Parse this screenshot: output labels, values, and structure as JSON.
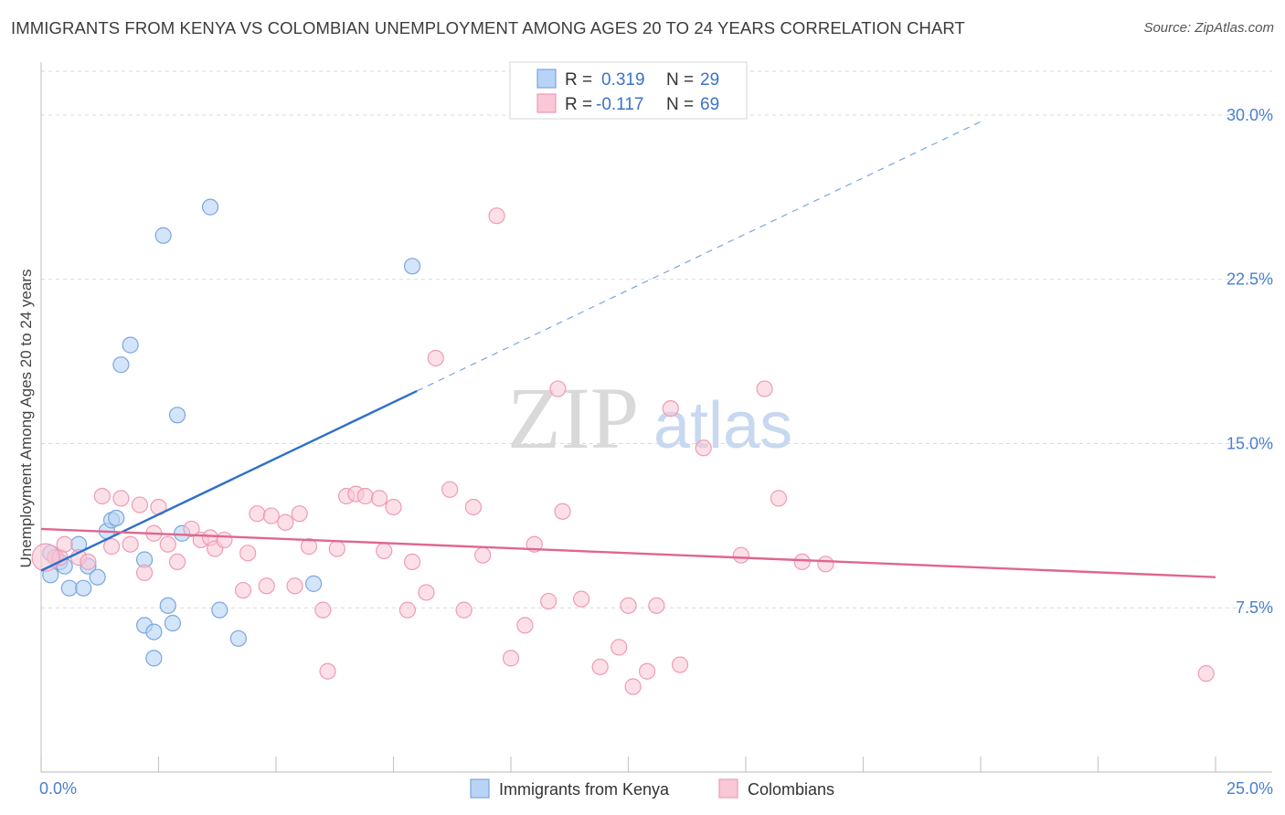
{
  "title": "IMMIGRANTS FROM KENYA VS COLOMBIAN UNEMPLOYMENT AMONG AGES 20 TO 24 YEARS CORRELATION CHART",
  "source": "Source: ZipAtlas.com",
  "watermark": {
    "zip": "ZIP",
    "atlas": "atlas"
  },
  "legend_top": {
    "r_label": "R =",
    "n_label": "N =",
    "rows": [
      {
        "r": "0.319",
        "n": "29"
      },
      {
        "r": "-0.117",
        "n": "69"
      }
    ]
  },
  "colors": {
    "kenya_fill": "#b8d3f5",
    "kenya_stroke": "#7aa6e0",
    "kenya_line": "#2f6fca",
    "colombia_fill": "#f9c7d6",
    "colombia_stroke": "#ef9bb5",
    "colombia_line": "#e0668f",
    "value_text": "#3a73c8",
    "grid": "#d9d9d9"
  },
  "chart_data": {
    "type": "scatter",
    "xlabel": "",
    "ylabel": "Unemployment Among Ages 20 to 24 years",
    "xlim": [
      0,
      25
    ],
    "ylim": [
      0,
      32
    ],
    "x_tick_labels": [
      "0.0%",
      "25.0%"
    ],
    "y_ticks": [
      7.5,
      15.0,
      22.5,
      30.0
    ],
    "y_tick_labels": [
      "7.5%",
      "15.0%",
      "22.5%",
      "30.0%"
    ],
    "grid": "horizontal dashed",
    "legend_placement": "bottom-center",
    "series": [
      {
        "name": "Immigrants from Kenya",
        "r": 0.319,
        "n": 29,
        "points": [
          [
            0.2,
            10.0
          ],
          [
            0.2,
            9.0
          ],
          [
            0.3,
            9.8
          ],
          [
            0.4,
            9.6
          ],
          [
            0.5,
            9.4
          ],
          [
            0.6,
            8.4
          ],
          [
            0.8,
            10.4
          ],
          [
            0.9,
            8.4
          ],
          [
            1.0,
            9.4
          ],
          [
            1.2,
            8.9
          ],
          [
            1.4,
            11.0
          ],
          [
            1.5,
            11.5
          ],
          [
            1.6,
            11.6
          ],
          [
            1.7,
            18.6
          ],
          [
            1.9,
            19.5
          ],
          [
            2.2,
            6.7
          ],
          [
            2.2,
            9.7
          ],
          [
            2.4,
            5.2
          ],
          [
            2.4,
            6.4
          ],
          [
            2.6,
            24.5
          ],
          [
            2.7,
            7.6
          ],
          [
            2.8,
            6.8
          ],
          [
            2.9,
            16.3
          ],
          [
            3.0,
            10.9
          ],
          [
            3.6,
            25.8
          ],
          [
            3.8,
            7.4
          ],
          [
            4.2,
            6.1
          ],
          [
            5.8,
            8.6
          ],
          [
            7.9,
            23.1
          ]
        ],
        "trend": {
          "x0": 0.0,
          "y0": 9.2,
          "x1": 8.0,
          "y1": 17.4,
          "x_ext": 20.1,
          "y_ext": 29.8
        }
      },
      {
        "name": "Colombians",
        "r": -0.117,
        "n": 69,
        "points": [
          [
            0.3,
            9.8
          ],
          [
            0.4,
            9.8
          ],
          [
            0.5,
            10.4
          ],
          [
            0.8,
            9.8
          ],
          [
            1.0,
            9.6
          ],
          [
            1.3,
            12.6
          ],
          [
            1.5,
            10.3
          ],
          [
            1.7,
            12.5
          ],
          [
            1.9,
            10.4
          ],
          [
            2.1,
            12.2
          ],
          [
            2.2,
            9.1
          ],
          [
            2.4,
            10.9
          ],
          [
            2.5,
            12.1
          ],
          [
            2.7,
            10.4
          ],
          [
            2.9,
            9.6
          ],
          [
            3.2,
            11.1
          ],
          [
            3.4,
            10.6
          ],
          [
            3.6,
            10.7
          ],
          [
            3.7,
            10.2
          ],
          [
            3.9,
            10.6
          ],
          [
            4.3,
            8.3
          ],
          [
            4.4,
            10.0
          ],
          [
            4.6,
            11.8
          ],
          [
            4.8,
            8.5
          ],
          [
            4.9,
            11.7
          ],
          [
            5.2,
            11.4
          ],
          [
            5.4,
            8.5
          ],
          [
            5.5,
            11.8
          ],
          [
            5.7,
            10.3
          ],
          [
            6.0,
            7.4
          ],
          [
            6.1,
            4.6
          ],
          [
            6.3,
            10.2
          ],
          [
            6.5,
            12.6
          ],
          [
            6.7,
            12.7
          ],
          [
            6.9,
            12.6
          ],
          [
            7.2,
            12.5
          ],
          [
            7.3,
            10.1
          ],
          [
            7.5,
            12.1
          ],
          [
            7.8,
            7.4
          ],
          [
            7.9,
            9.6
          ],
          [
            8.2,
            8.2
          ],
          [
            8.4,
            18.9
          ],
          [
            8.7,
            12.9
          ],
          [
            9.0,
            7.4
          ],
          [
            9.2,
            12.1
          ],
          [
            9.4,
            9.9
          ],
          [
            9.7,
            25.4
          ],
          [
            10.0,
            5.2
          ],
          [
            10.3,
            6.7
          ],
          [
            10.5,
            10.4
          ],
          [
            10.8,
            7.8
          ],
          [
            11.0,
            17.5
          ],
          [
            11.1,
            11.9
          ],
          [
            11.5,
            7.9
          ],
          [
            11.9,
            4.8
          ],
          [
            12.3,
            5.7
          ],
          [
            12.5,
            7.6
          ],
          [
            12.6,
            3.9
          ],
          [
            12.9,
            4.6
          ],
          [
            13.1,
            7.6
          ],
          [
            13.4,
            16.6
          ],
          [
            13.6,
            4.9
          ],
          [
            14.1,
            14.8
          ],
          [
            14.9,
            9.9
          ],
          [
            15.4,
            17.5
          ],
          [
            15.7,
            12.5
          ],
          [
            16.2,
            9.6
          ],
          [
            16.7,
            9.5
          ],
          [
            24.8,
            4.5
          ]
        ],
        "big_points": [
          [
            0.1,
            9.8
          ]
        ],
        "trend": {
          "x0": 0.0,
          "y0": 11.1,
          "x1": 25.0,
          "y1": 8.9
        }
      }
    ]
  }
}
